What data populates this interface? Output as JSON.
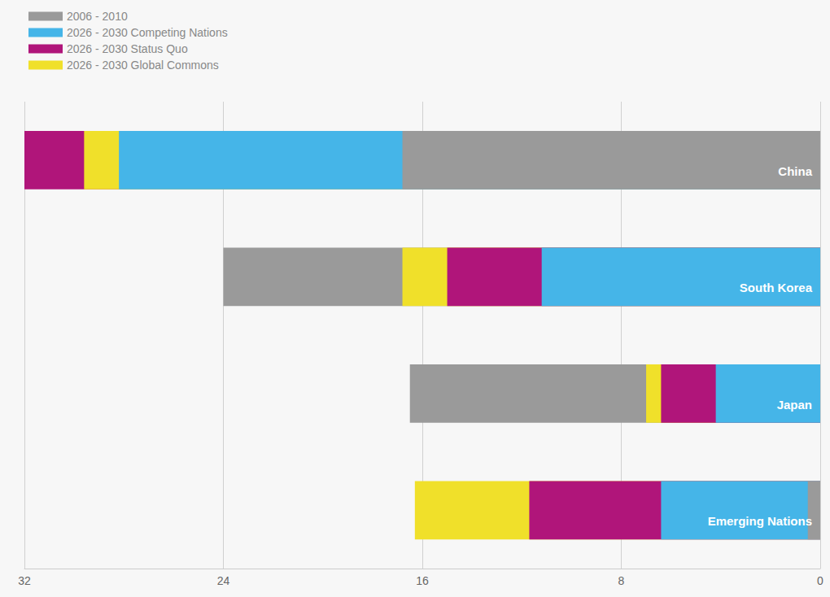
{
  "chart_data": {
    "type": "bar",
    "orientation": "horizontal",
    "categories": [
      "China",
      "South Korea",
      "Japan",
      "Emerging Nations"
    ],
    "series": [
      {
        "name": "2006 - 2010",
        "color": "#9a9a9a",
        "values": [
          16.8,
          24.0,
          16.5,
          0.5
        ]
      },
      {
        "name": "2026 - 2030 Competing Nations",
        "color": "#45b5e8",
        "values": [
          28.2,
          11.2,
          4.2,
          6.4
        ]
      },
      {
        "name": "2026 - 2030 Status Quo",
        "color": "#b0157a",
        "values": [
          32.0,
          15.0,
          6.4,
          11.7
        ]
      },
      {
        "name": "2026 - 2030 Global Commons",
        "color": "#f0e02a",
        "values": [
          29.6,
          16.8,
          7.0,
          16.3
        ]
      }
    ],
    "xlim": [
      0,
      32
    ],
    "xticks": [
      0,
      8,
      16,
      24,
      32
    ],
    "grid": true,
    "legend": "top-left"
  }
}
